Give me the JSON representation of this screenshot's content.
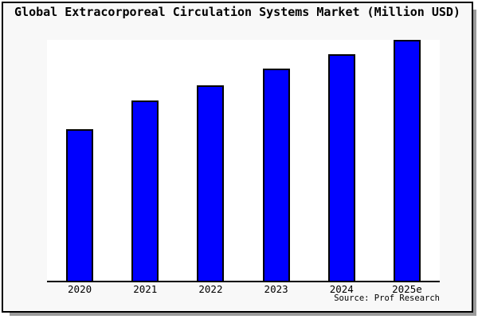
{
  "header": {
    "title": "Global Extracorporeal Circulation Systems Market (Million USD)"
  },
  "source": {
    "label": "Source: Prof Research"
  },
  "colors": {
    "bar_fill": "#0000fe",
    "bar_border": "#000000",
    "frame_background": "#f8f8f8",
    "plot_background": "#ffffff",
    "axis": "#000000",
    "frame_border": "#000000",
    "shadow": "#9b9b9b"
  },
  "chart_data": {
    "type": "bar",
    "title": "Global Extracorporeal Circulation Systems Market (Million USD)",
    "categories": [
      "2020",
      "2021",
      "2022",
      "2023",
      "2024",
      "2025e"
    ],
    "values": [
      0.63,
      0.75,
      0.81,
      0.88,
      0.94,
      1.0
    ],
    "value_scale": "relative - no y-axis ticks or value labels shown; heights normalized to 2025e = 1.0",
    "xlabel": "",
    "ylabel": "",
    "ylim": [
      0,
      1.0
    ],
    "grid": false,
    "legend": false,
    "annotations": [
      "Source: Prof Research"
    ]
  }
}
